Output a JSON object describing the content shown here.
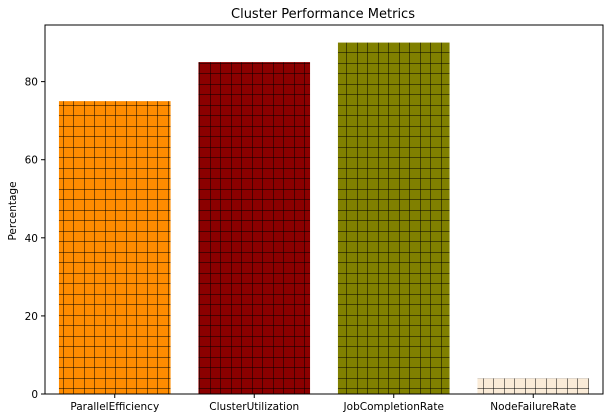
{
  "chart_data": {
    "type": "bar",
    "title": "Cluster Performance Metrics",
    "xlabel": "",
    "ylabel": "Percentage",
    "categories": [
      "ParallelEfficiency",
      "ClusterUtilization",
      "JobCompletionRate",
      "NodeFailureRate"
    ],
    "values": [
      75,
      85,
      90,
      4
    ],
    "colors": [
      "#ff8c00",
      "#8b0000",
      "#808000",
      "#faebd7"
    ],
    "hatch": "grid",
    "ylim": [
      0,
      94.5
    ],
    "yticks": [
      0,
      20,
      40,
      60,
      80
    ],
    "grid": false,
    "legend": "none"
  }
}
